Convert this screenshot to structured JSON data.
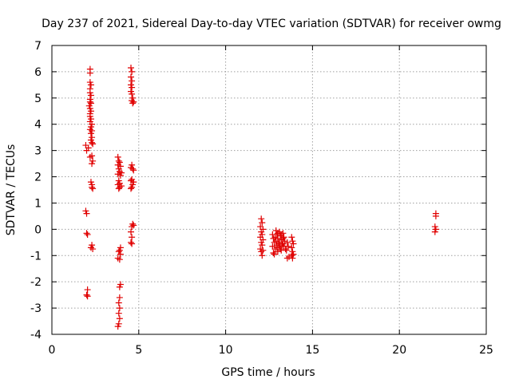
{
  "chart_data": {
    "type": "scatter",
    "title": "Day 237 of 2021, Sidereal Day-to-day VTEC variation (SDTVAR) for receiver owmg",
    "xlabel": "GPS time / hours",
    "ylabel": "SDTVAR / TECUs",
    "xlim": [
      0,
      25
    ],
    "ylim": [
      -4,
      7
    ],
    "xticks": [
      0,
      5,
      10,
      15,
      20,
      25
    ],
    "xtick_labels": [
      "0",
      "5",
      "10",
      "15",
      "20",
      "25"
    ],
    "yticks": [
      -4,
      -3,
      -2,
      -1,
      0,
      1,
      2,
      3,
      4,
      5,
      6,
      7
    ],
    "ytick_labels": [
      "-4",
      "-3",
      "-2",
      "-1",
      "0",
      "1",
      "2",
      "3",
      "4",
      "5",
      "6",
      "7"
    ],
    "grid": true,
    "marker": "plus",
    "color": "#e00000",
    "series": [
      {
        "name": "SDTVAR",
        "points": [
          [
            1.95,
            0.7
          ],
          [
            2.0,
            0.6
          ],
          [
            2.0,
            -0.15
          ],
          [
            2.05,
            -0.2
          ],
          [
            2.05,
            -2.3
          ],
          [
            2.0,
            -2.5
          ],
          [
            2.05,
            -2.55
          ],
          [
            1.95,
            3.2
          ],
          [
            2.0,
            3.0
          ],
          [
            2.1,
            3.1
          ],
          [
            2.2,
            6.1
          ],
          [
            2.2,
            5.95
          ],
          [
            2.2,
            5.6
          ],
          [
            2.25,
            5.5
          ],
          [
            2.2,
            5.35
          ],
          [
            2.2,
            5.2
          ],
          [
            2.25,
            5.1
          ],
          [
            2.2,
            4.95
          ],
          [
            2.2,
            4.85
          ],
          [
            2.25,
            4.8
          ],
          [
            2.15,
            4.7
          ],
          [
            2.2,
            4.6
          ],
          [
            2.25,
            4.5
          ],
          [
            2.2,
            4.4
          ],
          [
            2.2,
            4.3
          ],
          [
            2.25,
            4.2
          ],
          [
            2.2,
            4.1
          ],
          [
            2.3,
            4.0
          ],
          [
            2.25,
            3.9
          ],
          [
            2.2,
            3.8
          ],
          [
            2.3,
            3.75
          ],
          [
            2.25,
            3.65
          ],
          [
            2.3,
            3.5
          ],
          [
            2.25,
            3.4
          ],
          [
            2.3,
            3.3
          ],
          [
            2.35,
            3.25
          ],
          [
            2.3,
            2.8
          ],
          [
            2.2,
            2.75
          ],
          [
            2.35,
            2.6
          ],
          [
            2.3,
            2.5
          ],
          [
            2.25,
            1.8
          ],
          [
            2.3,
            1.7
          ],
          [
            2.3,
            1.6
          ],
          [
            2.35,
            1.55
          ],
          [
            2.3,
            -0.6
          ],
          [
            2.25,
            -0.7
          ],
          [
            2.35,
            -0.75
          ],
          [
            3.8,
            2.75
          ],
          [
            3.85,
            2.6
          ],
          [
            3.9,
            2.55
          ],
          [
            3.8,
            2.45
          ],
          [
            3.95,
            2.4
          ],
          [
            3.85,
            2.3
          ],
          [
            3.9,
            2.2
          ],
          [
            4.0,
            2.15
          ],
          [
            3.8,
            2.1
          ],
          [
            3.95,
            2.05
          ],
          [
            3.85,
            1.85
          ],
          [
            3.9,
            1.75
          ],
          [
            3.8,
            1.7
          ],
          [
            4.0,
            1.65
          ],
          [
            3.9,
            1.6
          ],
          [
            3.85,
            1.55
          ],
          [
            3.95,
            -0.7
          ],
          [
            3.9,
            -0.8
          ],
          [
            3.85,
            -0.85
          ],
          [
            3.95,
            -0.95
          ],
          [
            3.8,
            -1.1
          ],
          [
            3.9,
            -1.15
          ],
          [
            3.95,
            -2.1
          ],
          [
            3.9,
            -2.2
          ],
          [
            3.9,
            -2.6
          ],
          [
            3.85,
            -2.8
          ],
          [
            3.9,
            -3.0
          ],
          [
            3.85,
            -3.2
          ],
          [
            3.9,
            -3.4
          ],
          [
            3.85,
            -3.6
          ],
          [
            3.8,
            -3.7
          ],
          [
            4.55,
            6.15
          ],
          [
            4.6,
            6.0
          ],
          [
            4.55,
            5.8
          ],
          [
            4.6,
            5.65
          ],
          [
            4.55,
            5.5
          ],
          [
            4.6,
            5.4
          ],
          [
            4.55,
            5.25
          ],
          [
            4.6,
            5.15
          ],
          [
            4.65,
            5.0
          ],
          [
            4.6,
            4.9
          ],
          [
            4.7,
            4.85
          ],
          [
            4.65,
            4.8
          ],
          [
            4.6,
            2.45
          ],
          [
            4.55,
            2.35
          ],
          [
            4.65,
            2.3
          ],
          [
            4.7,
            2.25
          ],
          [
            4.6,
            1.9
          ],
          [
            4.55,
            1.85
          ],
          [
            4.7,
            1.8
          ],
          [
            4.65,
            1.7
          ],
          [
            4.6,
            1.6
          ],
          [
            4.55,
            1.55
          ],
          [
            4.65,
            0.2
          ],
          [
            4.7,
            0.15
          ],
          [
            4.6,
            0.1
          ],
          [
            4.55,
            -0.1
          ],
          [
            4.6,
            -0.3
          ],
          [
            4.55,
            -0.5
          ],
          [
            4.6,
            -0.55
          ],
          [
            12.05,
            0.4
          ],
          [
            12.1,
            0.25
          ],
          [
            12.0,
            0.1
          ],
          [
            12.15,
            0.0
          ],
          [
            12.05,
            -0.1
          ],
          [
            12.1,
            -0.2
          ],
          [
            12.0,
            -0.3
          ],
          [
            12.15,
            -0.4
          ],
          [
            12.05,
            -0.5
          ],
          [
            12.1,
            -0.6
          ],
          [
            12.0,
            -0.75
          ],
          [
            12.15,
            -0.8
          ],
          [
            12.05,
            -0.85
          ],
          [
            12.1,
            -1.0
          ],
          [
            12.7,
            -0.2
          ],
          [
            12.75,
            -0.35
          ],
          [
            12.8,
            -0.5
          ],
          [
            12.7,
            -0.65
          ],
          [
            12.85,
            -0.75
          ],
          [
            12.75,
            -0.9
          ],
          [
            12.8,
            -0.95
          ],
          [
            12.9,
            -0.05
          ],
          [
            12.95,
            -0.2
          ],
          [
            13.0,
            -0.35
          ],
          [
            12.9,
            -0.45
          ],
          [
            13.05,
            -0.55
          ],
          [
            12.95,
            -0.7
          ],
          [
            13.0,
            -0.85
          ],
          [
            13.1,
            -0.1
          ],
          [
            13.15,
            -0.25
          ],
          [
            13.2,
            -0.4
          ],
          [
            13.1,
            -0.5
          ],
          [
            13.25,
            -0.6
          ],
          [
            13.15,
            -0.75
          ],
          [
            13.2,
            -0.8
          ],
          [
            13.3,
            -0.15
          ],
          [
            13.35,
            -0.3
          ],
          [
            13.4,
            -0.45
          ],
          [
            13.3,
            -0.55
          ],
          [
            13.35,
            -0.65
          ],
          [
            13.45,
            -0.75
          ],
          [
            12.85,
            -0.3
          ],
          [
            13.0,
            -0.15
          ],
          [
            13.1,
            -0.65
          ],
          [
            13.3,
            -0.35
          ],
          [
            12.95,
            -0.6
          ],
          [
            13.2,
            -0.2
          ],
          [
            13.55,
            -0.5
          ],
          [
            13.6,
            -0.65
          ],
          [
            13.5,
            -0.8
          ],
          [
            13.65,
            -1.05
          ],
          [
            13.55,
            -1.1
          ],
          [
            13.8,
            -0.3
          ],
          [
            13.85,
            -0.45
          ],
          [
            13.9,
            -0.55
          ],
          [
            13.8,
            -0.7
          ],
          [
            13.85,
            -0.85
          ],
          [
            13.9,
            -0.95
          ],
          [
            13.8,
            -1.0
          ],
          [
            13.85,
            -1.1
          ],
          [
            22.1,
            0.6
          ],
          [
            22.1,
            0.5
          ],
          [
            22.05,
            0.1
          ],
          [
            22.1,
            0.0
          ],
          [
            22.05,
            -0.1
          ]
        ]
      }
    ]
  }
}
